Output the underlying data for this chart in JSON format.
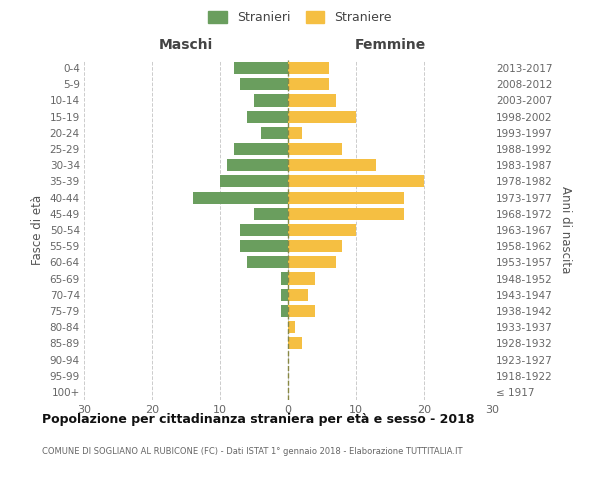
{
  "age_groups": [
    "100+",
    "95-99",
    "90-94",
    "85-89",
    "80-84",
    "75-79",
    "70-74",
    "65-69",
    "60-64",
    "55-59",
    "50-54",
    "45-49",
    "40-44",
    "35-39",
    "30-34",
    "25-29",
    "20-24",
    "15-19",
    "10-14",
    "5-9",
    "0-4"
  ],
  "birth_years": [
    "≤ 1917",
    "1918-1922",
    "1923-1927",
    "1928-1932",
    "1933-1937",
    "1938-1942",
    "1943-1947",
    "1948-1952",
    "1953-1957",
    "1958-1962",
    "1963-1967",
    "1968-1972",
    "1973-1977",
    "1978-1982",
    "1983-1987",
    "1988-1992",
    "1993-1997",
    "1998-2002",
    "2003-2007",
    "2008-2012",
    "2013-2017"
  ],
  "maschi": [
    0,
    0,
    0,
    0,
    0,
    1,
    1,
    1,
    6,
    7,
    7,
    5,
    14,
    10,
    9,
    8,
    4,
    6,
    5,
    7,
    8
  ],
  "femmine": [
    0,
    0,
    0,
    2,
    1,
    4,
    3,
    4,
    7,
    8,
    10,
    17,
    17,
    20,
    13,
    8,
    2,
    10,
    7,
    6,
    6
  ],
  "maschi_color": "#6a9e5e",
  "femmine_color": "#f5bf42",
  "title": "Popolazione per cittadinanza straniera per età e sesso - 2018",
  "subtitle": "COMUNE DI SOGLIANO AL RUBICONE (FC) - Dati ISTAT 1° gennaio 2018 - Elaborazione TUTTITALIA.IT",
  "ylabel_left": "Fasce di età",
  "ylabel_right": "Anni di nascita",
  "xlabel_left": "Maschi",
  "xlabel_right": "Femmine",
  "legend_maschi": "Stranieri",
  "legend_femmine": "Straniere",
  "xlim": 30,
  "background_color": "#ffffff",
  "grid_color": "#cccccc"
}
